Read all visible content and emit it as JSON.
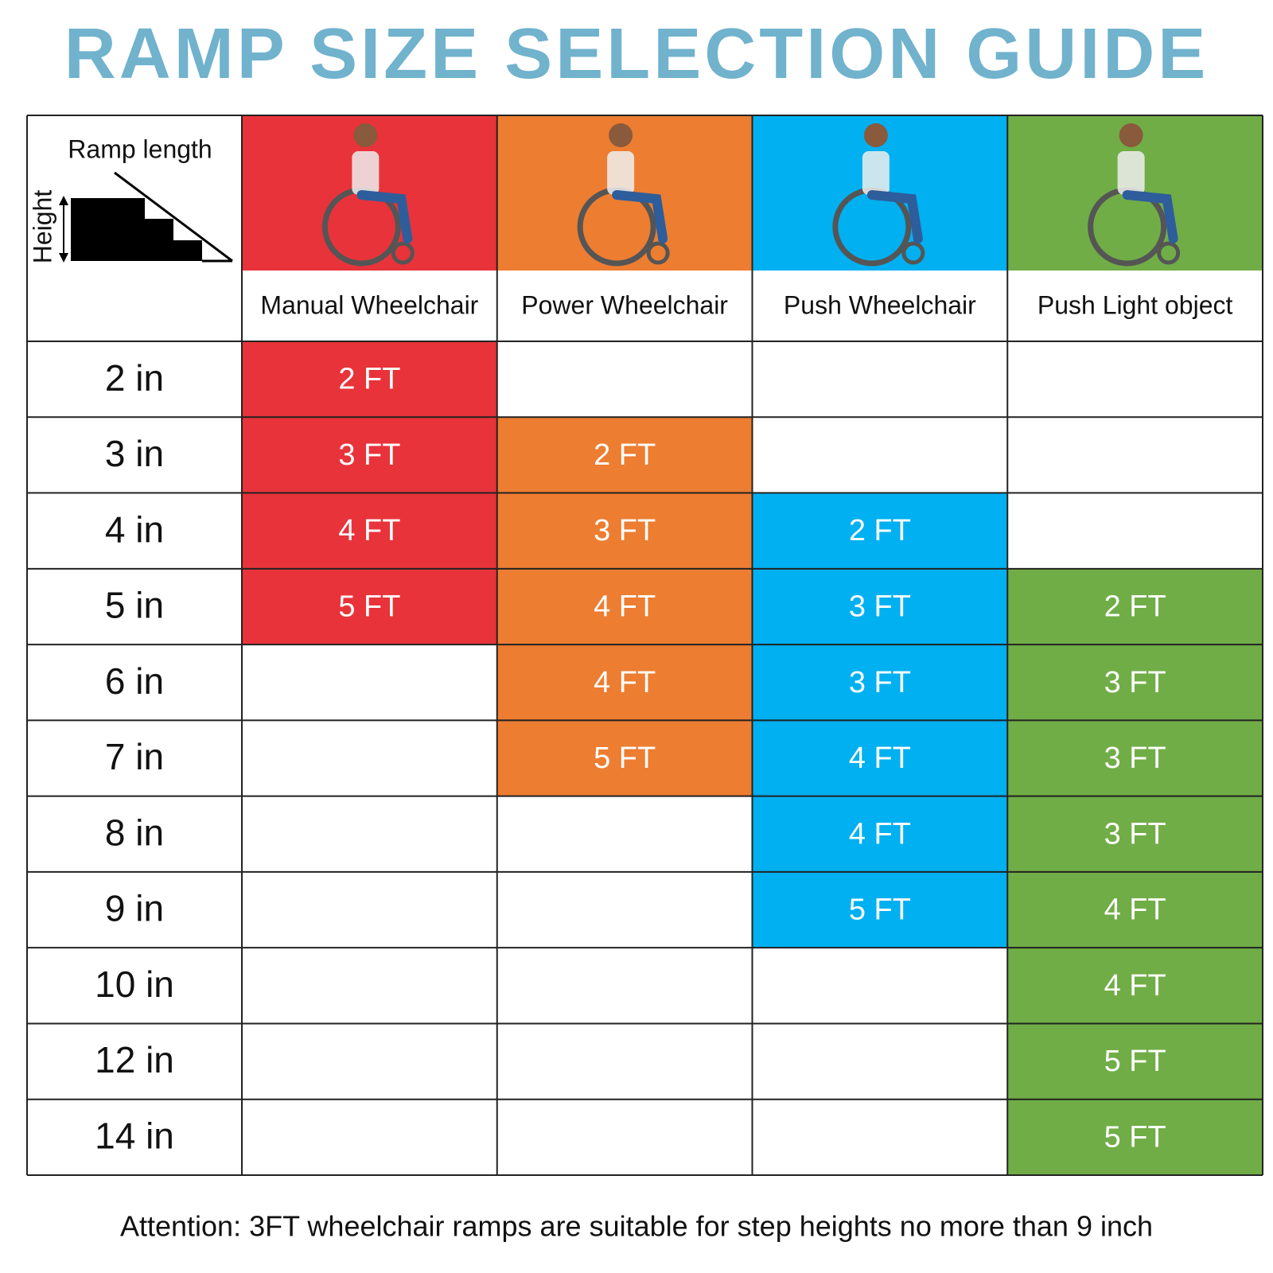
{
  "title": "RAMP SIZE SELECTION GUIDE",
  "corner": {
    "ramp_length": "Ramp length",
    "height": "Height"
  },
  "table": {
    "columns": [
      {
        "name": "Manual Wheelchair",
        "color": "#e8333a"
      },
      {
        "name": "Power Wheelchair",
        "color": "#ed7d31"
      },
      {
        "name": "Push Wheelchair",
        "color": "#00b0f0"
      },
      {
        "name": "Push Light object",
        "color": "#70ad47"
      }
    ],
    "rows": [
      {
        "height": "2 in",
        "cells": [
          "2 FT",
          null,
          null,
          null
        ]
      },
      {
        "height": "3 in",
        "cells": [
          "3 FT",
          "2 FT",
          null,
          null
        ]
      },
      {
        "height": "4 in",
        "cells": [
          "4 FT",
          "3 FT",
          "2 FT",
          null
        ]
      },
      {
        "height": "5 in",
        "cells": [
          "5 FT",
          "4 FT",
          "3 FT",
          "2 FT"
        ]
      },
      {
        "height": "6 in",
        "cells": [
          null,
          "4 FT",
          "3 FT",
          "3 FT"
        ]
      },
      {
        "height": "7 in",
        "cells": [
          null,
          "5 FT",
          "4 FT",
          "3 FT"
        ]
      },
      {
        "height": "8 in",
        "cells": [
          null,
          null,
          "4 FT",
          "3 FT"
        ]
      },
      {
        "height": "9 in",
        "cells": [
          null,
          null,
          "5 FT",
          "4 FT"
        ]
      },
      {
        "height": "10 in",
        "cells": [
          null,
          null,
          null,
          "4 FT"
        ]
      },
      {
        "height": "12 in",
        "cells": [
          null,
          null,
          null,
          "5 FT"
        ]
      },
      {
        "height": "14 in",
        "cells": [
          null,
          null,
          null,
          "5 FT"
        ]
      }
    ]
  },
  "note": "Attention: 3FT wheelchair ramps are suitable for step heights no more than 9 inch"
}
